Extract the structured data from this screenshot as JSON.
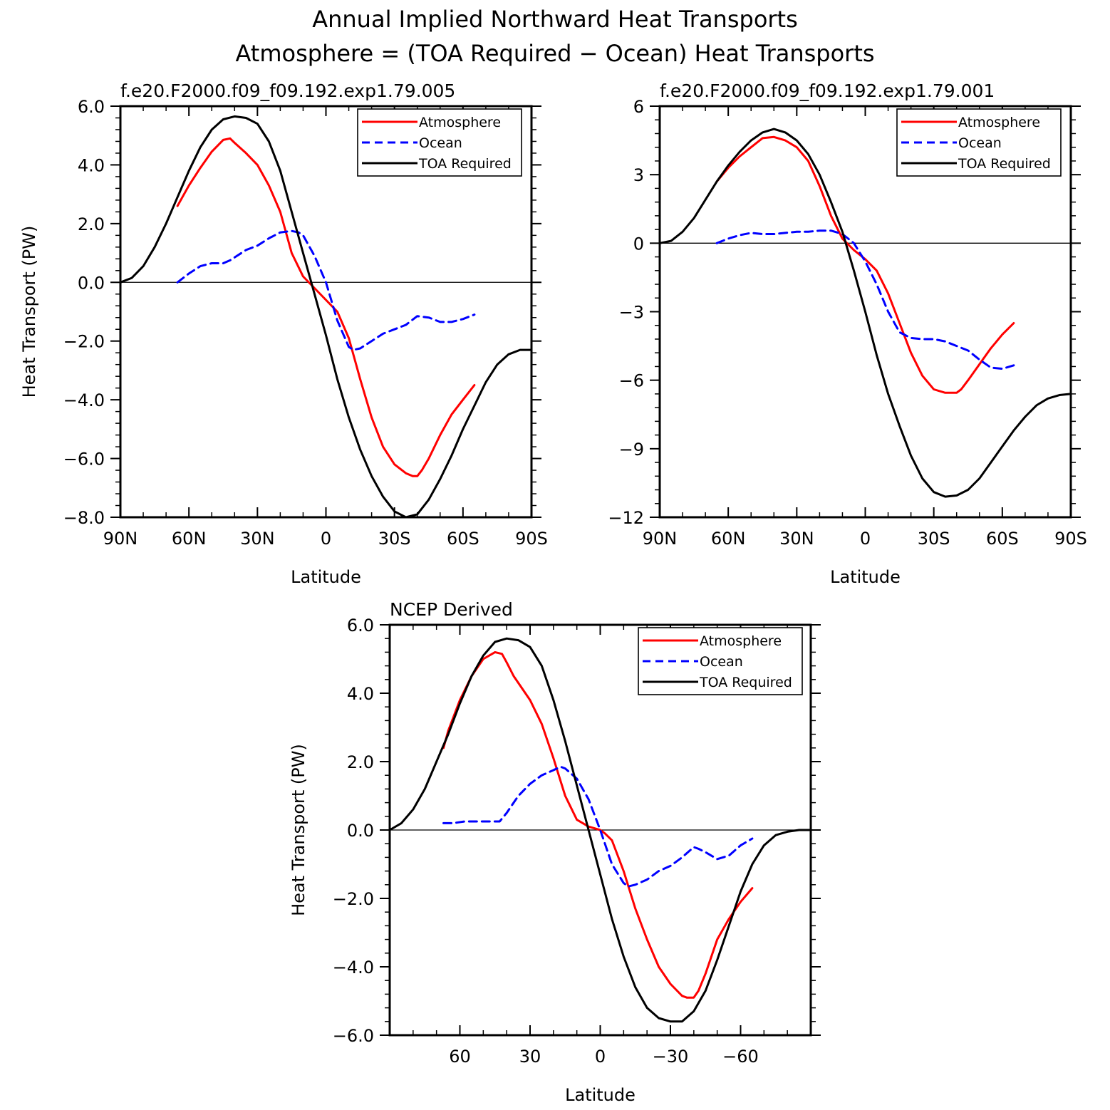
{
  "figure": {
    "title_line1": "Annual Implied Northward Heat Transports",
    "title_line2": "Atmosphere = (TOA Required − Ocean) Heat Transports"
  },
  "colors": {
    "atmosphere": "#ff0000",
    "ocean": "#0000ff",
    "toa": "#000000",
    "axis": "#000000"
  },
  "chart_data": [
    {
      "type": "line",
      "subtitle": "f.e20.F2000.f09_f09.192.exp1.79.005",
      "xlabel": "Latitude",
      "ylabel": "Heat Transport (PW)",
      "xlim": [
        90,
        -90
      ],
      "ylim": [
        -8,
        6
      ],
      "xticks": [
        90,
        60,
        30,
        0,
        -30,
        -60,
        -90
      ],
      "xtick_labels": [
        "90N",
        "60N",
        "30N",
        "0",
        "30S",
        "60S",
        "90S"
      ],
      "yticks": [
        -8,
        -6,
        -4,
        -2,
        0,
        2,
        4,
        6
      ],
      "ytick_labels": [
        "−8.0",
        "−6.0",
        "−4.0",
        "−2.0",
        "0.0",
        "2.0",
        "4.0",
        "6.0"
      ],
      "legend": [
        "Atmosphere",
        "Ocean",
        "TOA Required"
      ],
      "legend_position": "top-right",
      "series": [
        {
          "name": "Atmosphere",
          "style": "solid",
          "color": "#ff0000",
          "x": [
            65,
            60,
            55,
            50,
            45,
            42,
            40,
            35,
            30,
            25,
            20,
            15,
            10,
            5,
            0,
            -5,
            -10,
            -15,
            -20,
            -25,
            -30,
            -35,
            -38,
            -40,
            -42,
            -45,
            -50,
            -55,
            -60,
            -65
          ],
          "y": [
            2.6,
            3.3,
            3.9,
            4.45,
            4.85,
            4.9,
            4.75,
            4.4,
            4.0,
            3.3,
            2.4,
            1.0,
            0.2,
            -0.2,
            -0.6,
            -1.0,
            -1.9,
            -3.3,
            -4.6,
            -5.6,
            -6.2,
            -6.5,
            -6.6,
            -6.6,
            -6.4,
            -6.0,
            -5.2,
            -4.5,
            -4.0,
            -3.5
          ]
        },
        {
          "name": "Ocean",
          "style": "dashed",
          "color": "#0000ff",
          "x": [
            65,
            60,
            55,
            50,
            45,
            42,
            40,
            35,
            30,
            25,
            20,
            15,
            12,
            10,
            5,
            0,
            -5,
            -10,
            -12,
            -15,
            -20,
            -25,
            -30,
            -35,
            -40,
            -45,
            -50,
            -55,
            -60,
            -65
          ],
          "y": [
            0.0,
            0.3,
            0.55,
            0.65,
            0.65,
            0.75,
            0.85,
            1.1,
            1.25,
            1.5,
            1.7,
            1.75,
            1.7,
            1.6,
            0.9,
            0.0,
            -1.3,
            -2.2,
            -2.3,
            -2.25,
            -2.0,
            -1.75,
            -1.6,
            -1.45,
            -1.15,
            -1.2,
            -1.35,
            -1.35,
            -1.25,
            -1.1
          ]
        },
        {
          "name": "TOA Required",
          "style": "solid",
          "color": "#000000",
          "x": [
            90,
            85,
            80,
            75,
            70,
            65,
            60,
            55,
            50,
            45,
            40,
            35,
            30,
            25,
            20,
            15,
            10,
            5,
            0,
            -5,
            -10,
            -15,
            -20,
            -25,
            -30,
            -35,
            -40,
            -45,
            -50,
            -55,
            -60,
            -65,
            -70,
            -75,
            -80,
            -85,
            -90
          ],
          "y": [
            0.0,
            0.15,
            0.55,
            1.2,
            2.0,
            2.9,
            3.8,
            4.6,
            5.2,
            5.55,
            5.65,
            5.6,
            5.4,
            4.8,
            3.8,
            2.4,
            1.0,
            -0.4,
            -1.8,
            -3.3,
            -4.6,
            -5.7,
            -6.6,
            -7.3,
            -7.8,
            -8.0,
            -7.9,
            -7.4,
            -6.7,
            -5.9,
            -5.0,
            -4.2,
            -3.4,
            -2.8,
            -2.45,
            -2.3,
            -2.3
          ]
        }
      ]
    },
    {
      "type": "line",
      "subtitle": "f.e20.F2000.f09_f09.192.exp1.79.001",
      "xlabel": "Latitude",
      "ylabel": "",
      "xlim": [
        90,
        -90
      ],
      "ylim": [
        -12,
        6
      ],
      "xticks": [
        90,
        60,
        30,
        0,
        -30,
        -60,
        -90
      ],
      "xtick_labels": [
        "90N",
        "60N",
        "30N",
        "0",
        "30S",
        "60S",
        "90S"
      ],
      "yticks": [
        -12,
        -9,
        -6,
        -3,
        0,
        3,
        6
      ],
      "ytick_labels": [
        "−12",
        "−9",
        "−6",
        "−3",
        "0",
        "3",
        "6"
      ],
      "legend": [
        "Atmosphere",
        "Ocean",
        "TOA Required"
      ],
      "legend_position": "top-right",
      "series": [
        {
          "name": "Atmosphere",
          "style": "solid",
          "color": "#ff0000",
          "x": [
            65,
            60,
            55,
            50,
            45,
            40,
            35,
            30,
            25,
            20,
            15,
            10,
            5,
            0,
            -5,
            -10,
            -15,
            -20,
            -25,
            -30,
            -35,
            -40,
            -42,
            -45,
            -50,
            -55,
            -60,
            -65
          ],
          "y": [
            2.7,
            3.3,
            3.8,
            4.2,
            4.6,
            4.65,
            4.5,
            4.2,
            3.6,
            2.5,
            1.2,
            0.2,
            -0.3,
            -0.7,
            -1.2,
            -2.2,
            -3.5,
            -4.8,
            -5.8,
            -6.4,
            -6.55,
            -6.55,
            -6.4,
            -6.0,
            -5.3,
            -4.6,
            -4.0,
            -3.5
          ]
        },
        {
          "name": "Ocean",
          "style": "dashed",
          "color": "#0000ff",
          "x": [
            65,
            60,
            55,
            50,
            45,
            40,
            35,
            30,
            25,
            20,
            15,
            10,
            5,
            0,
            -5,
            -10,
            -15,
            -20,
            -25,
            -30,
            -35,
            -40,
            -45,
            -50,
            -55,
            -60,
            -65
          ],
          "y": [
            0.0,
            0.2,
            0.35,
            0.45,
            0.4,
            0.4,
            0.45,
            0.5,
            0.5,
            0.55,
            0.55,
            0.4,
            0.0,
            -0.8,
            -1.8,
            -3.0,
            -3.9,
            -4.15,
            -4.2,
            -4.2,
            -4.3,
            -4.5,
            -4.7,
            -5.1,
            -5.45,
            -5.5,
            -5.35
          ]
        },
        {
          "name": "TOA Required",
          "style": "solid",
          "color": "#000000",
          "x": [
            90,
            85,
            80,
            75,
            70,
            65,
            60,
            55,
            50,
            45,
            40,
            35,
            30,
            25,
            20,
            15,
            10,
            5,
            0,
            -5,
            -10,
            -15,
            -20,
            -25,
            -30,
            -35,
            -40,
            -45,
            -50,
            -55,
            -60,
            -65,
            -70,
            -75,
            -80,
            -85,
            -90
          ],
          "y": [
            0.0,
            0.1,
            0.5,
            1.1,
            1.9,
            2.7,
            3.4,
            4.0,
            4.5,
            4.85,
            5.0,
            4.85,
            4.5,
            3.9,
            3.0,
            1.8,
            0.5,
            -1.2,
            -3.0,
            -4.9,
            -6.6,
            -8.0,
            -9.3,
            -10.3,
            -10.9,
            -11.1,
            -11.05,
            -10.8,
            -10.3,
            -9.6,
            -8.9,
            -8.2,
            -7.6,
            -7.1,
            -6.8,
            -6.65,
            -6.6
          ]
        }
      ]
    },
    {
      "type": "line",
      "subtitle": "NCEP Derived",
      "xlabel": "Latitude",
      "ylabel": "Heat Transport (PW)",
      "xlim": [
        90,
        -90
      ],
      "ylim": [
        -6,
        6
      ],
      "xticks": [
        60,
        30,
        0,
        -30,
        -60
      ],
      "xtick_labels": [
        "60",
        "30",
        "0",
        "−30",
        "−60"
      ],
      "yticks": [
        -6,
        -4,
        -2,
        0,
        2,
        4,
        6
      ],
      "ytick_labels": [
        "−6.0",
        "−4.0",
        "−2.0",
        "0.0",
        "2.0",
        "4.0",
        "6.0"
      ],
      "legend": [
        "Atmosphere",
        "Ocean",
        "TOA Required"
      ],
      "legend_position": "top-right",
      "series": [
        {
          "name": "Atmosphere",
          "style": "solid",
          "color": "#ff0000",
          "x": [
            67,
            65,
            60,
            55,
            50,
            45,
            42,
            40,
            37,
            35,
            30,
            25,
            20,
            15,
            10,
            5,
            0,
            -2,
            -5,
            -10,
            -15,
            -20,
            -25,
            -30,
            -35,
            -37,
            -40,
            -42,
            -45,
            -50,
            -55,
            -60,
            -65
          ],
          "y": [
            2.4,
            2.9,
            3.8,
            4.5,
            5.0,
            5.2,
            5.15,
            4.9,
            4.5,
            4.3,
            3.8,
            3.1,
            2.1,
            1.0,
            0.3,
            0.1,
            0.0,
            -0.1,
            -0.3,
            -1.2,
            -2.3,
            -3.2,
            -4.0,
            -4.5,
            -4.85,
            -4.9,
            -4.9,
            -4.7,
            -4.2,
            -3.2,
            -2.6,
            -2.1,
            -1.7
          ]
        },
        {
          "name": "Ocean",
          "style": "dashed",
          "color": "#0000ff",
          "x": [
            67,
            63,
            58,
            53,
            48,
            43,
            40,
            37,
            35,
            30,
            25,
            20,
            17,
            15,
            10,
            5,
            0,
            -5,
            -10,
            -12,
            -15,
            -20,
            -25,
            -30,
            -35,
            -40,
            -42,
            -45,
            -50,
            -55,
            -60,
            -65
          ],
          "y": [
            0.2,
            0.2,
            0.25,
            0.25,
            0.25,
            0.25,
            0.5,
            0.8,
            1.0,
            1.35,
            1.6,
            1.75,
            1.85,
            1.8,
            1.5,
            0.9,
            0.0,
            -1.0,
            -1.55,
            -1.65,
            -1.6,
            -1.45,
            -1.2,
            -1.05,
            -0.8,
            -0.5,
            -0.55,
            -0.65,
            -0.85,
            -0.75,
            -0.45,
            -0.25
          ]
        },
        {
          "name": "TOA Required",
          "style": "solid",
          "color": "#000000",
          "x": [
            90,
            85,
            80,
            75,
            70,
            65,
            60,
            55,
            50,
            45,
            40,
            35,
            30,
            25,
            20,
            15,
            10,
            5,
            0,
            -5,
            -10,
            -15,
            -20,
            -25,
            -30,
            -35,
            -40,
            -45,
            -50,
            -55,
            -60,
            -65,
            -70,
            -75,
            -80,
            -85,
            -90
          ],
          "y": [
            0.0,
            0.2,
            0.6,
            1.2,
            2.0,
            2.8,
            3.7,
            4.5,
            5.1,
            5.5,
            5.6,
            5.55,
            5.35,
            4.8,
            3.8,
            2.6,
            1.3,
            0.0,
            -1.3,
            -2.6,
            -3.7,
            -4.6,
            -5.2,
            -5.5,
            -5.6,
            -5.6,
            -5.3,
            -4.7,
            -3.8,
            -2.8,
            -1.8,
            -1.0,
            -0.45,
            -0.15,
            -0.05,
            0.0,
            0.0
          ]
        }
      ]
    }
  ]
}
